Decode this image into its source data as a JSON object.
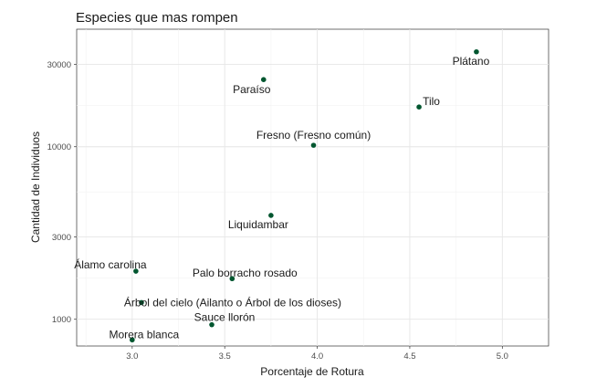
{
  "chart_data": {
    "type": "scatter",
    "title": "Especies que mas rompen",
    "xlabel": "Porcentaje de Rotura",
    "ylabel": "Cantidad de Individuos",
    "y_scale": "log",
    "xlim": [
      2.7,
      5.25
    ],
    "ylim": [
      700,
      48000
    ],
    "x_ticks": [
      3.0,
      3.5,
      4.0,
      4.5,
      5.0
    ],
    "x_tick_labels": [
      "3.0",
      "3.5",
      "4.0",
      "4.5",
      "5.0"
    ],
    "y_ticks": [
      1000,
      3000,
      10000,
      30000
    ],
    "y_tick_labels": [
      "1000",
      "3000",
      "10000",
      "30000"
    ],
    "grid": true,
    "legend": "none",
    "point_color": "#00562f",
    "points": [
      {
        "label": "Plátano",
        "x": 4.86,
        "y": 35500
      },
      {
        "label": "Paraíso",
        "x": 3.71,
        "y": 24500
      },
      {
        "label": "Tilo",
        "x": 4.55,
        "y": 17000
      },
      {
        "label": "Fresno (Fresno común)",
        "x": 3.98,
        "y": 10200
      },
      {
        "label": "Liquidambar",
        "x": 3.75,
        "y": 4000
      },
      {
        "label": "Álamo carolina",
        "x": 3.02,
        "y": 1900
      },
      {
        "label": "Palo borracho rosado",
        "x": 3.54,
        "y": 1720
      },
      {
        "label": "Árbol del cielo (Ailanto o Árbol de los dioses)",
        "x": 3.05,
        "y": 1250
      },
      {
        "label": "Sauce llorón",
        "x": 3.43,
        "y": 930
      },
      {
        "label": "Morera blanca",
        "x": 3.0,
        "y": 760
      }
    ]
  }
}
